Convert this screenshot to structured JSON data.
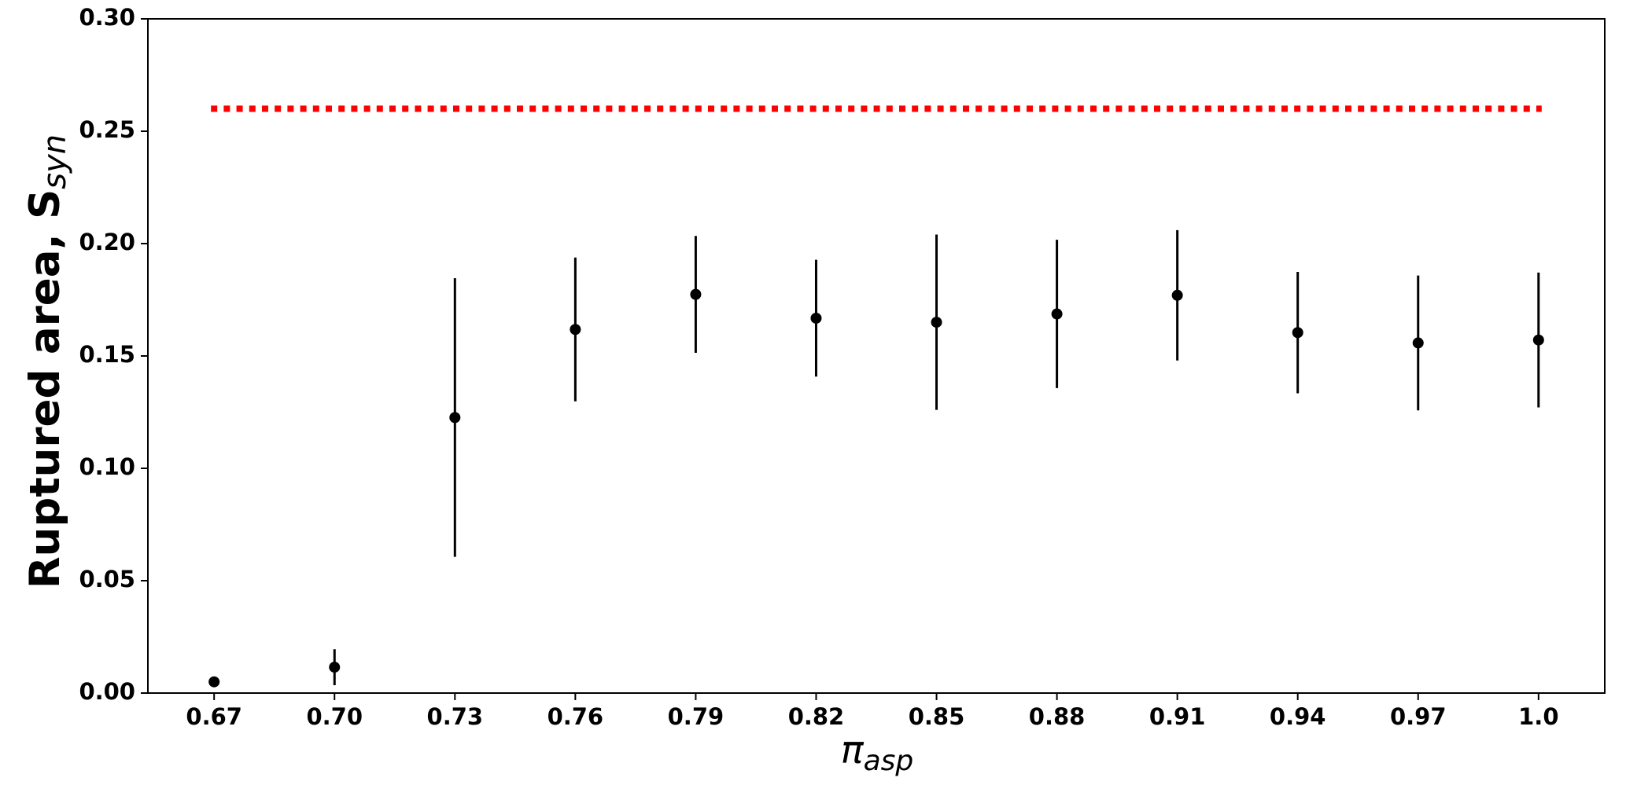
{
  "chart_data": {
    "type": "errorbar",
    "ylabel": "Ruptured area, S",
    "ylabel_subscript": "syn",
    "xlabel": "π",
    "xlabel_subscript": "asp",
    "categories": [
      "0.67",
      "0.70",
      "0.73",
      "0.76",
      "0.79",
      "0.82",
      "0.85",
      "0.88",
      "0.91",
      "0.94",
      "0.97",
      "1.0"
    ],
    "series": [
      {
        "color": "#000000",
        "values": [
          0.005,
          0.0115,
          0.1226,
          0.1618,
          0.1774,
          0.1668,
          0.165,
          0.1687,
          0.177,
          0.1604,
          0.1558,
          0.1571
        ],
        "errors": [
          0,
          0.008,
          0.062,
          0.032,
          0.026,
          0.026,
          0.039,
          0.033,
          0.029,
          0.027,
          0.03,
          0.03
        ]
      }
    ],
    "reference_line": {
      "value": 0.26,
      "color": "#ff0000",
      "style": "dotted"
    },
    "ylim": [
      0,
      0.3
    ],
    "yticks": [
      {
        "value": 0,
        "label": "0.00"
      },
      {
        "value": 0.05,
        "label": "0.05"
      },
      {
        "value": 0.1,
        "label": "0.10"
      },
      {
        "value": 0.15,
        "label": "0.15"
      },
      {
        "value": 0.2,
        "label": "0.20"
      },
      {
        "value": 0.25,
        "label": "0.25"
      },
      {
        "value": 0.3,
        "label": "0.30"
      }
    ],
    "grid": false
  }
}
